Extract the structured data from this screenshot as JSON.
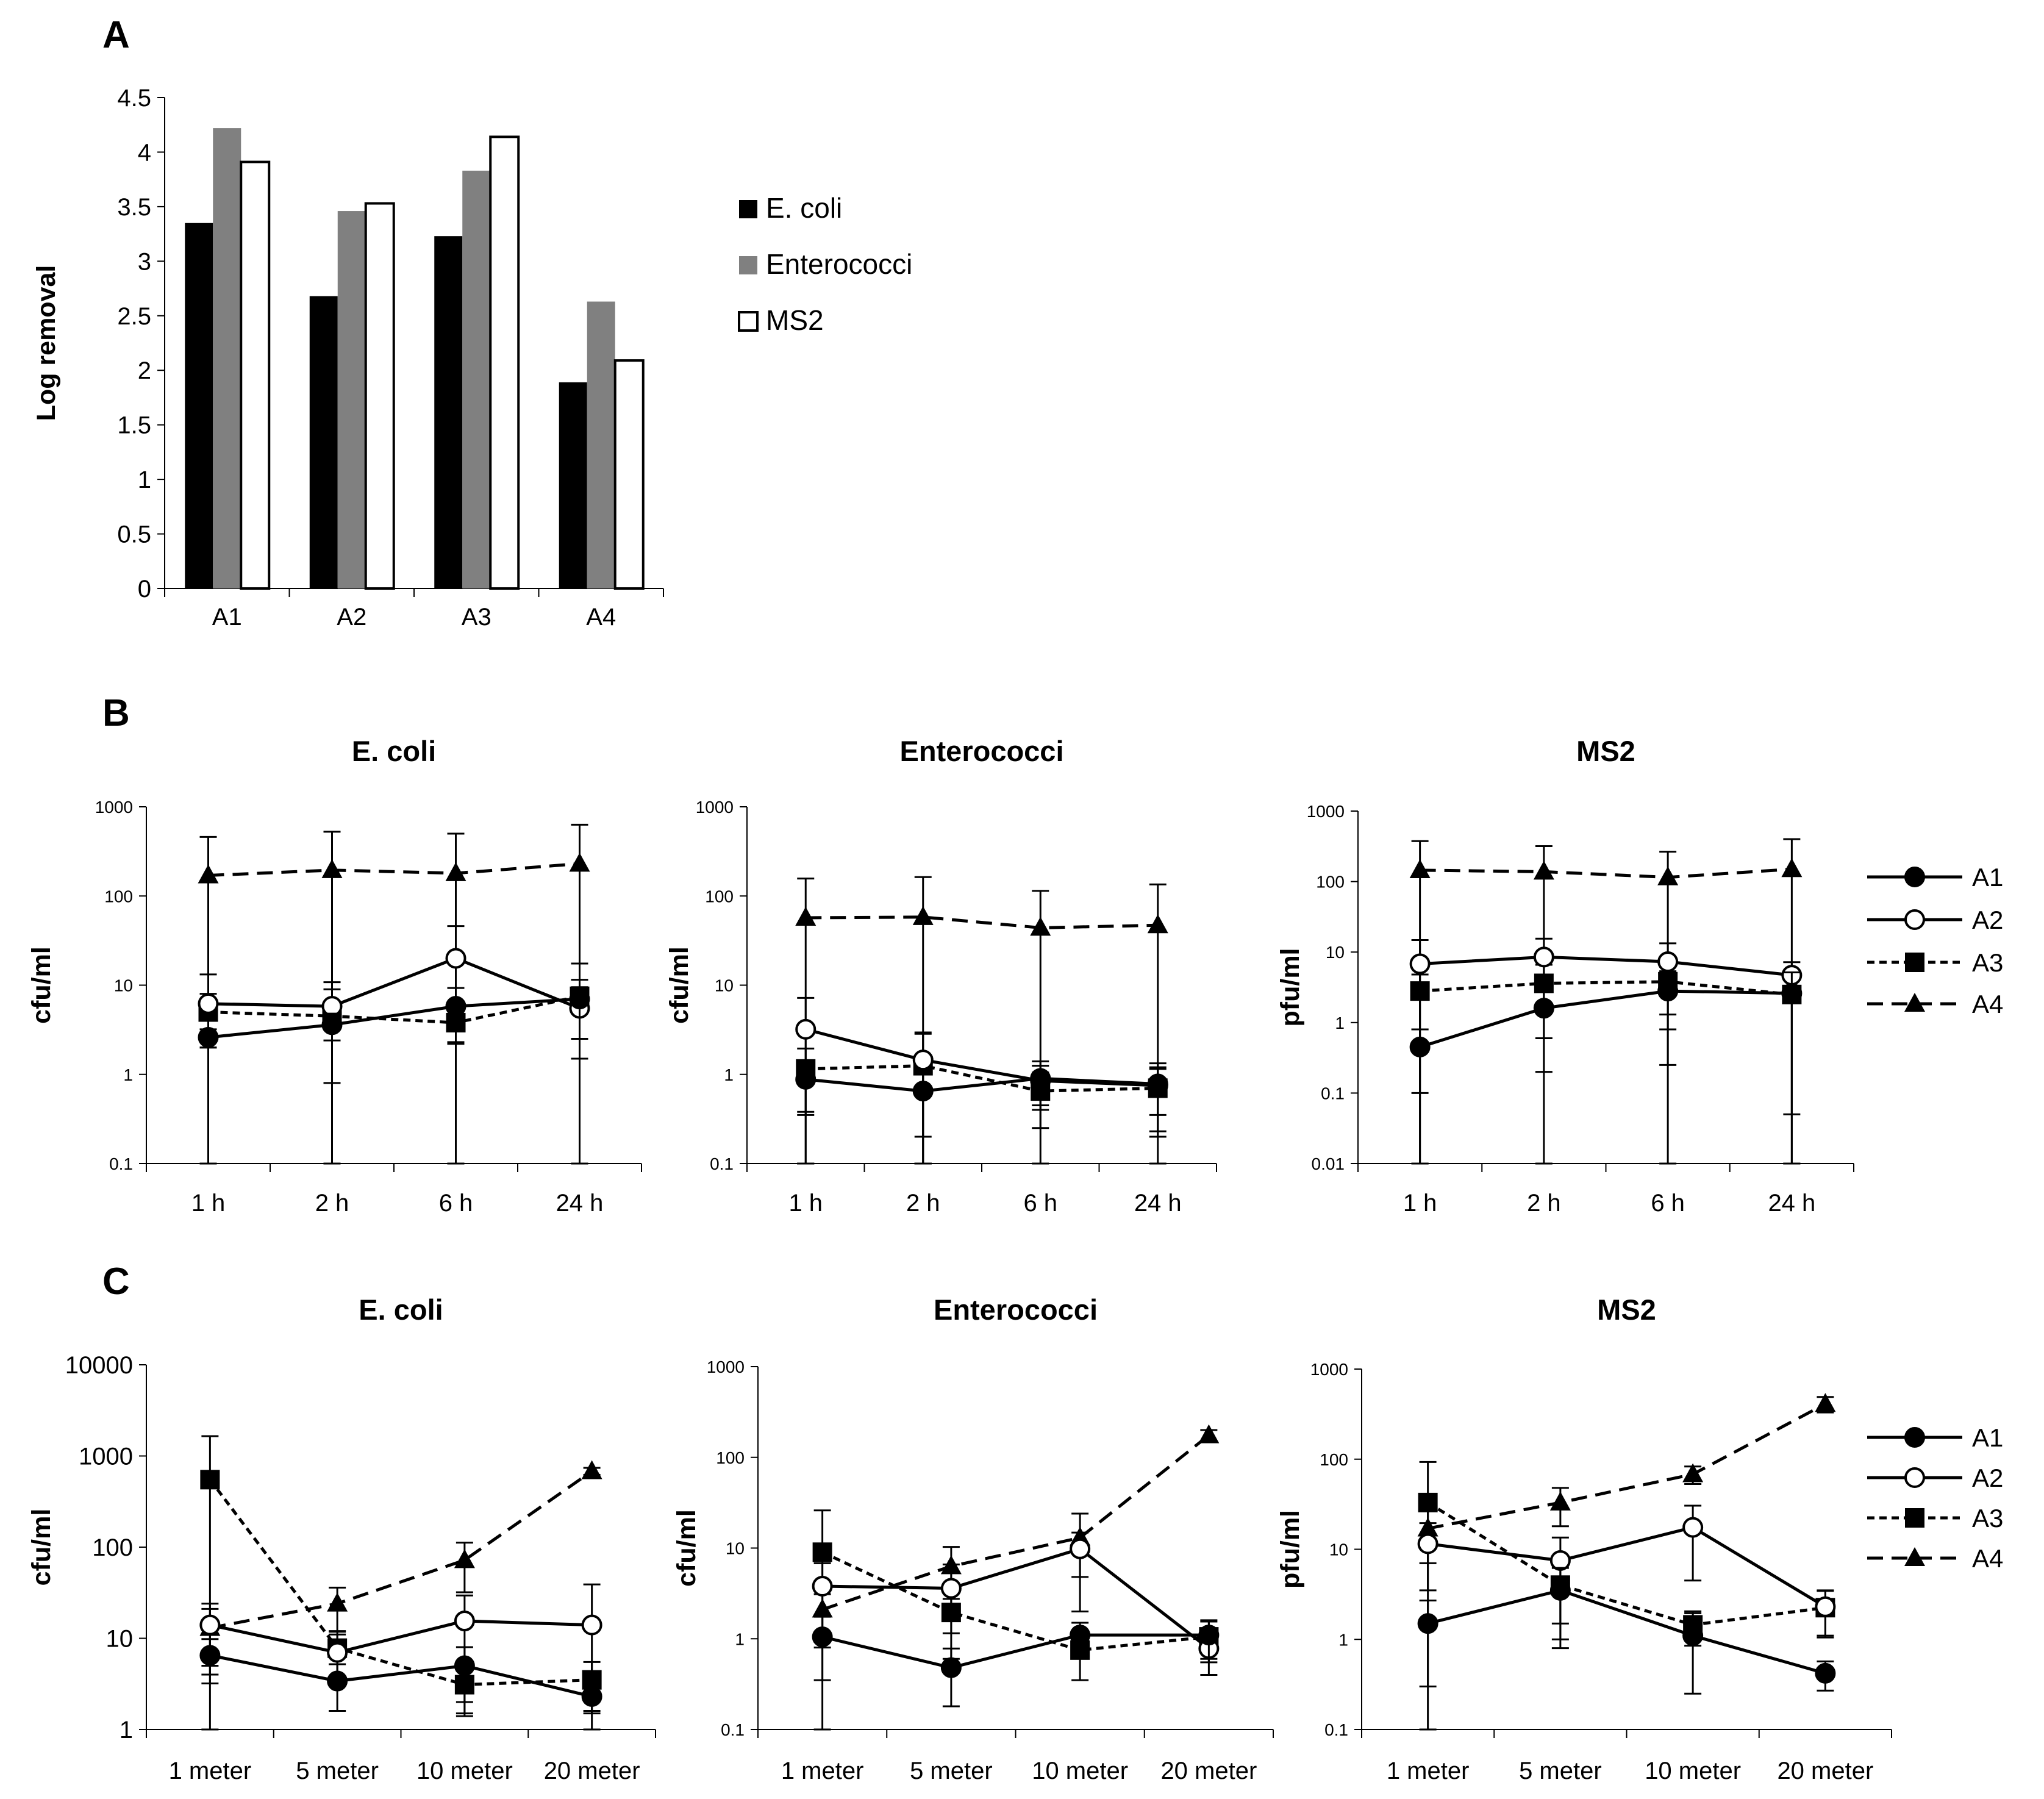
{
  "panels": {
    "a": "A",
    "b": "B",
    "c": "C"
  },
  "legend_a": [
    "E. coli",
    "Enterococci",
    "MS2"
  ],
  "legend_lines": [
    "A1",
    "A2",
    "A3",
    "A4"
  ],
  "colors": {
    "ecoli": "#000000",
    "entero": "#808080",
    "ms2": "#ffffff",
    "outline": "#000000"
  },
  "chart_data": [
    {
      "id": "A",
      "type": "bar",
      "ylabel": "Log removal",
      "ylim": [
        0,
        4.5
      ],
      "yticks": [
        "0",
        "0.5",
        "1",
        "1.5",
        "2",
        "2.5",
        "3",
        "3.5",
        "4",
        "4.5"
      ],
      "categories": [
        "A1",
        "A2",
        "A3",
        "A4"
      ],
      "series": [
        {
          "name": "E. coli",
          "values": [
            3.35,
            2.68,
            3.23,
            1.89
          ]
        },
        {
          "name": "Enterococci",
          "values": [
            4.22,
            3.46,
            3.83,
            2.63
          ]
        },
        {
          "name": "MS2",
          "values": [
            3.91,
            3.53,
            4.14,
            2.09
          ]
        }
      ]
    },
    {
      "id": "B-ecoli",
      "type": "line",
      "scale": "log",
      "title": "E. coli",
      "ylabel": "cfu/ml",
      "ylim": [
        0.1,
        1000
      ],
      "yticks": [
        "0.1",
        "1",
        "10",
        "100",
        "1000"
      ],
      "categories": [
        "1 h",
        "2 h",
        "6 h",
        "24 h"
      ],
      "series": [
        {
          "name": "A1",
          "values": [
            2.6,
            3.6,
            5.8,
            7.0
          ],
          "err": [
            0.6,
            1.2,
            3.5,
            4.5
          ]
        },
        {
          "name": "A2",
          "values": [
            6.2,
            5.8,
            20,
            5.5
          ],
          "err": [
            7,
            5,
            26,
            4
          ]
        },
        {
          "name": "A3",
          "values": [
            5.0,
            4.5,
            3.8,
            7.5
          ],
          "err": [
            3,
            4.5,
            1.6,
            10
          ]
        },
        {
          "name": "A4",
          "values": [
            170,
            195,
            180,
            230
          ],
          "err": [
            290,
            330,
            320,
            400
          ]
        }
      ]
    },
    {
      "id": "B-entero",
      "type": "line",
      "scale": "log",
      "title": "Enterococci",
      "ylabel": "cfu/ml",
      "ylim": [
        0.1,
        1000
      ],
      "yticks": [
        "0.1",
        "1",
        "10",
        "100",
        "1000"
      ],
      "categories": [
        "1 h",
        "2 h",
        "6 h",
        "24 h"
      ],
      "series": [
        {
          "name": "A1",
          "values": [
            0.88,
            0.65,
            0.9,
            0.78
          ],
          "err": [
            0.5,
            0.45,
            0.5,
            0.55
          ]
        },
        {
          "name": "A2",
          "values": [
            3.2,
            1.45,
            0.85,
            0.75
          ],
          "err": [
            4,
            1.5,
            0.4,
            0.4
          ]
        },
        {
          "name": "A3",
          "values": [
            1.15,
            1.25,
            0.65,
            0.7
          ],
          "err": [
            0.8,
            1.6,
            0.4,
            0.5
          ]
        },
        {
          "name": "A4",
          "values": [
            57,
            58,
            44,
            47
          ],
          "err": [
            100,
            105,
            70,
            88
          ]
        }
      ]
    },
    {
      "id": "B-ms2",
      "type": "line",
      "scale": "log",
      "title": "MS2",
      "ylabel": "pfu/ml",
      "ylim": [
        0.01,
        1000
      ],
      "yticks": [
        "0.01",
        "0.1",
        "1",
        "10",
        "100",
        "1000"
      ],
      "categories": [
        "1 h",
        "2 h",
        "6 h",
        "24 h"
      ],
      "series": [
        {
          "name": "A1",
          "values": [
            0.45,
            1.6,
            2.8,
            2.6
          ],
          "err": [
            0.35,
            1.4,
            2.55,
            2.55
          ]
        },
        {
          "name": "A2",
          "values": [
            6.8,
            8.5,
            7.3,
            4.7
          ],
          "err": [
            8,
            7,
            6,
            2.5
          ]
        },
        {
          "name": "A3",
          "values": [
            2.8,
            3.6,
            3.8,
            2.5
          ],
          "err": [
            2,
            3,
            3,
            3
          ]
        },
        {
          "name": "A4",
          "values": [
            145,
            138,
            115,
            150
          ],
          "err": [
            230,
            180,
            150,
            250
          ]
        }
      ]
    },
    {
      "id": "C-ecoli",
      "type": "line",
      "scale": "log",
      "title": "E. coli",
      "ylabel": "cfu/ml",
      "ylim": [
        1,
        10000
      ],
      "yticks": [
        "1",
        "10",
        "100",
        "1000",
        "10000"
      ],
      "categories": [
        "1 meter",
        "5 meter",
        "10 meter",
        "20 meter"
      ],
      "series": [
        {
          "name": "A1",
          "values": [
            6.5,
            3.4,
            5.0,
            2.3
          ],
          "err": [
            3.3,
            1.8,
            3,
            0.7
          ]
        },
        {
          "name": "A2",
          "values": [
            14,
            7.0,
            15.5,
            14
          ],
          "err": [
            10,
            4,
            14,
            25
          ]
        },
        {
          "name": "A3",
          "values": [
            550,
            7.8,
            3.1,
            3.5
          ],
          "err": [
            1100,
            4,
            1.7,
            2
          ]
        },
        {
          "name": "A4",
          "values": [
            13,
            24,
            72,
            680
          ],
          "err": [
            8,
            12,
            40,
            60
          ]
        }
      ]
    },
    {
      "id": "C-entero",
      "type": "line",
      "scale": "log",
      "title": "Enterococci",
      "ylabel": "cfu/ml",
      "ylim": [
        0.1,
        1000
      ],
      "yticks": [
        "0.1",
        "1",
        "10",
        "100",
        "1000"
      ],
      "categories": [
        "1 meter",
        "5 meter",
        "10 meter",
        "20 meter"
      ],
      "series": [
        {
          "name": "A1",
          "values": [
            1.05,
            0.48,
            1.1,
            1.1
          ],
          "err": [
            0.7,
            0.3,
            0.4,
            0.5
          ]
        },
        {
          "name": "A2",
          "values": [
            3.8,
            3.6,
            9.8,
            0.78
          ],
          "err": [
            3,
            3,
            5,
            0.38
          ]
        },
        {
          "name": "A3",
          "values": [
            9.0,
            1.95,
            0.75,
            1.05
          ],
          "err": [
            17,
            0.8,
            0.4,
            0.5
          ]
        },
        {
          "name": "A4",
          "values": [
            2.1,
            6.3,
            13,
            175
          ],
          "err": [
            1,
            4,
            11,
            25
          ]
        }
      ]
    },
    {
      "id": "C-ms2",
      "type": "line",
      "scale": "log",
      "title": "MS2",
      "ylabel": "pfu/ml",
      "ylim": [
        0.1,
        1000
      ],
      "yticks": [
        "0.1",
        "1",
        "10",
        "100",
        "1000"
      ],
      "categories": [
        "1 meter",
        "5 meter",
        "10 meter",
        "20 meter"
      ],
      "series": [
        {
          "name": "A1",
          "values": [
            1.5,
            3.5,
            1.1,
            0.42
          ],
          "err": [
            1.2,
            2.7,
            0.85,
            0.15
          ]
        },
        {
          "name": "A2",
          "values": [
            11.5,
            7.5,
            17.5,
            2.3
          ],
          "err": [
            8,
            6,
            13,
            1.2
          ]
        },
        {
          "name": "A3",
          "values": [
            33,
            4.0,
            1.45,
            2.25
          ],
          "err": [
            60,
            3,
            0.6,
            1.2
          ]
        },
        {
          "name": "A4",
          "values": [
            17,
            33,
            68,
            410
          ],
          "err": [
            10,
            15,
            15,
            80
          ]
        }
      ]
    }
  ]
}
